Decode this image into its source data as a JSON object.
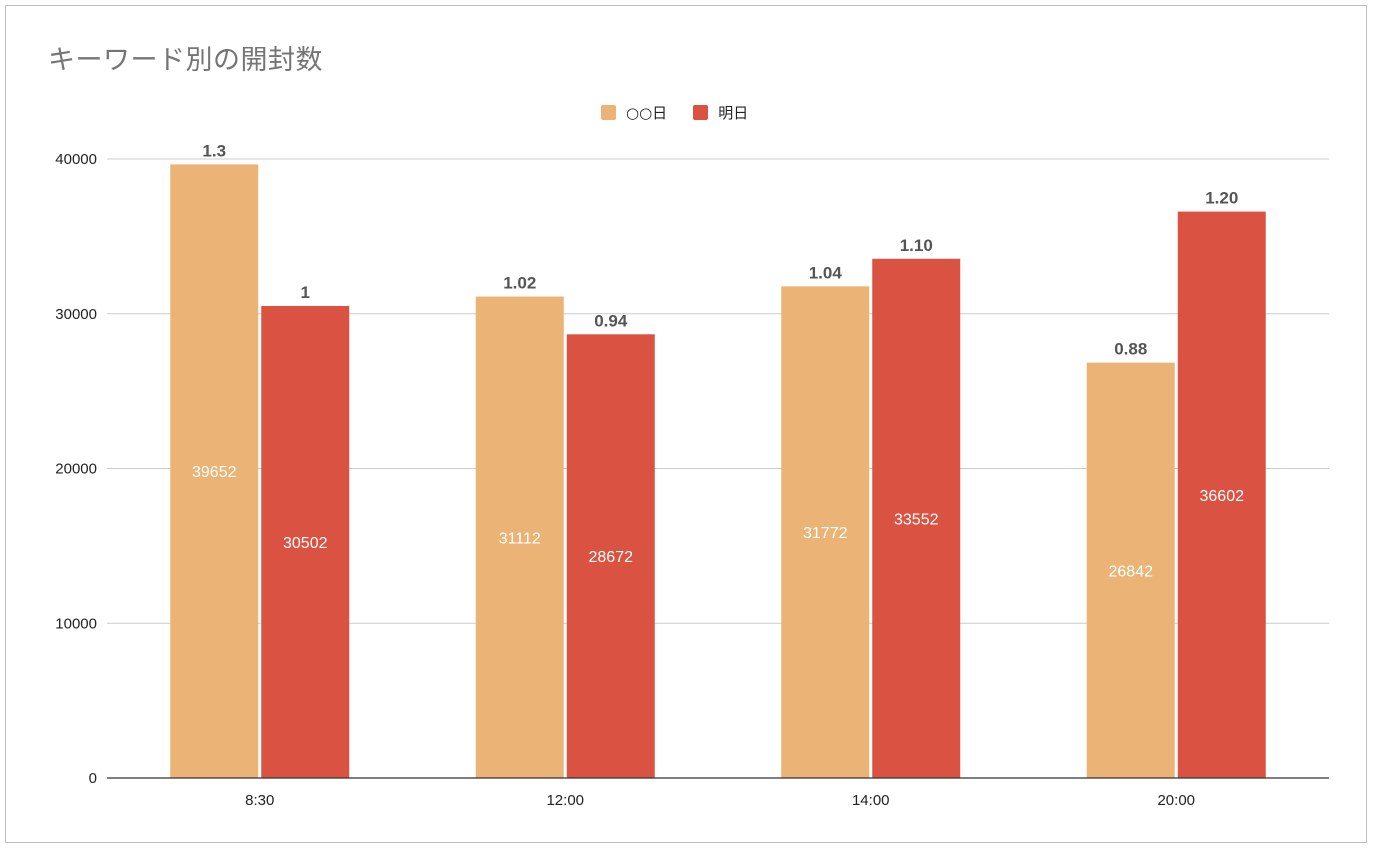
{
  "chart_data": {
    "type": "bar",
    "title": "キーワード別の開封数",
    "xlabel": "",
    "ylabel": "",
    "categories": [
      "8:30",
      "12:00",
      "14:00",
      "20:00"
    ],
    "ylim": [
      0,
      40000
    ],
    "yticks": [
      "0",
      "10000",
      "20000",
      "30000",
      "40000"
    ],
    "grid": true,
    "legend_position": "top",
    "series": [
      {
        "name": "○○日",
        "color": "#ebb375",
        "values": [
          39652,
          31112,
          31772,
          26842
        ],
        "top_labels": [
          "1.3",
          "1.02",
          "1.04",
          "0.88"
        ]
      },
      {
        "name": "明日",
        "color": "#da5241",
        "values": [
          30502,
          28672,
          33552,
          36602
        ],
        "top_labels": [
          "1",
          "0.94",
          "1.10",
          "1.20"
        ]
      }
    ]
  }
}
